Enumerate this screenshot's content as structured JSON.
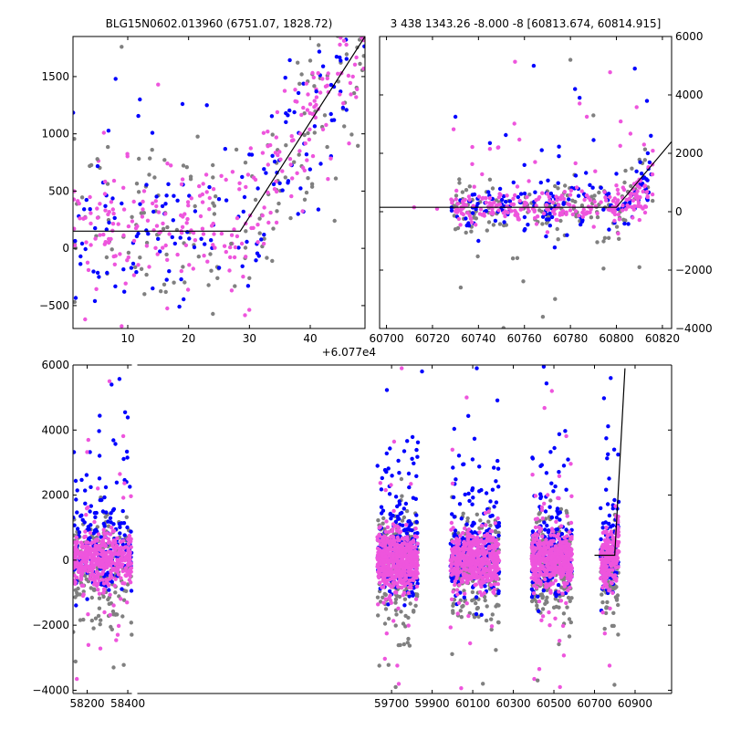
{
  "colors": {
    "gray": "#808080",
    "blue": "#0000ff",
    "pink": "#ee55dd",
    "model": "#000000"
  },
  "chart_data": [
    {
      "type": "scatter",
      "title": "BLG15N0602.013960 (6751.07, 1828.72)",
      "xlabel": "",
      "ylabel": "",
      "xlim": [
        1,
        49
      ],
      "ylim": [
        -700,
        1850
      ],
      "xticks": [
        10,
        20,
        30,
        40
      ],
      "yticks": [
        -500,
        0,
        500,
        1000,
        1500
      ],
      "y_axis_side": "left",
      "offset_text": "",
      "model_line": [
        [
          1,
          150
        ],
        [
          28.5,
          150
        ],
        [
          49,
          1850
        ]
      ],
      "series": [
        {
          "color": "gray",
          "points": [
            [
              5,
              780
            ],
            [
              14,
              860
            ],
            [
              24,
              620
            ],
            [
              9,
              1760
            ],
            [
              40,
              1640
            ],
            [
              30,
              -260
            ],
            [
              12,
              -80
            ],
            [
              36,
              900
            ],
            [
              44,
              240
            ],
            [
              27,
              40
            ]
          ]
        },
        {
          "color": "blue",
          "points": [
            [
              8,
              1480
            ],
            [
              12,
              1300
            ],
            [
              19,
              1260
            ],
            [
              23,
              1250
            ],
            [
              30,
              820
            ],
            [
              34,
              560
            ],
            [
              36,
              1180
            ],
            [
              38,
              300
            ],
            [
              41,
              1370
            ],
            [
              25,
              430
            ]
          ]
        },
        {
          "color": "pink",
          "points": [
            [
              3,
              -620
            ],
            [
              6,
              120
            ],
            [
              15,
              1430
            ],
            [
              22,
              280
            ],
            [
              31,
              600
            ],
            [
              33,
              1020
            ],
            [
              37,
              940
            ],
            [
              42,
              1480
            ],
            [
              45,
              1840
            ],
            [
              47,
              1500
            ],
            [
              9,
              -680
            ]
          ]
        }
      ]
    },
    {
      "type": "scatter",
      "title": "3 438 1343.26 -8.000 -8 [60813.674, 60814.915]",
      "xlabel": "",
      "ylabel": "",
      "xlim": [
        60697,
        60824
      ],
      "ylim": [
        -4000,
        6000
      ],
      "xticks": [
        60700,
        60720,
        60740,
        60760,
        60780,
        60800,
        60820
      ],
      "yticks": [
        -4000,
        -2000,
        0,
        2000,
        4000,
        6000
      ],
      "y_axis_side": "right",
      "offset_text": "+6.077e4",
      "model_line": [
        [
          60697,
          150
        ],
        [
          60800,
          150
        ],
        [
          60824,
          2400
        ]
      ],
      "series": [
        {
          "color": "gray",
          "points": [
            [
              60755,
              -1600
            ],
            [
              60768,
              -3600
            ],
            [
              60780,
              5200
            ],
            [
              60795,
              -900
            ],
            [
              60810,
              -1900
            ],
            [
              60730,
              -600
            ],
            [
              60790,
              3300
            ],
            [
              60745,
              1100
            ]
          ]
        },
        {
          "color": "blue",
          "points": [
            [
              60730,
              3250
            ],
            [
              60745,
              2350
            ],
            [
              60760,
              1600
            ],
            [
              60775,
              1900
            ],
            [
              60782,
              4200
            ],
            [
              60784,
              3900
            ],
            [
              60808,
              4900
            ],
            [
              60815,
              2600
            ],
            [
              60800,
              1300
            ],
            [
              60740,
              -1000
            ]
          ]
        },
        {
          "color": "pink",
          "points": [
            [
              60712,
              150
            ],
            [
              60745,
              300
            ],
            [
              60770,
              -700
            ],
            [
              60785,
              700
            ],
            [
              60800,
              900
            ],
            [
              60812,
              2300
            ],
            [
              60722,
              100
            ],
            [
              60760,
              200
            ]
          ]
        }
      ]
    },
    {
      "type": "scatter",
      "title": "",
      "xlabel": "",
      "ylabel": "",
      "xlim": [
        58130,
        61080
      ],
      "ylim": [
        -4100,
        6000
      ],
      "xticks": [
        58200,
        58400,
        59700,
        59900,
        60100,
        60300,
        60500,
        60700,
        60900
      ],
      "yticks": [
        -4000,
        -2000,
        0,
        2000,
        4000,
        6000
      ],
      "y_axis_side": "left",
      "offset_text": "",
      "model_line": [
        [
          60700,
          150
        ],
        [
          60800,
          150
        ],
        [
          60850,
          5900
        ]
      ],
      "seasons": [
        {
          "xmin": 58130,
          "xmax": 58420,
          "count": 420
        },
        {
          "xmin": 59630,
          "xmax": 59830,
          "count": 520
        },
        {
          "xmin": 59990,
          "xmax": 60230,
          "count": 480
        },
        {
          "xmin": 60390,
          "xmax": 60590,
          "count": 470
        },
        {
          "xmin": 60730,
          "xmax": 60820,
          "count": 200
        }
      ],
      "outliers": [
        {
          "color": "blue",
          "points": [
            [
              58320,
              5400
            ],
            [
              59850,
              5800
            ],
            [
              60120,
              5900
            ],
            [
              60450,
              5950
            ],
            [
              60780,
              5600
            ]
          ]
        },
        {
          "color": "pink",
          "points": [
            [
              58310,
              5500
            ],
            [
              59750,
              5900
            ],
            [
              60070,
              5000
            ],
            [
              60490,
              5200
            ],
            [
              60530,
              -3900
            ]
          ]
        },
        {
          "color": "gray",
          "points": [
            [
              58330,
              -3300
            ],
            [
              59720,
              -3900
            ],
            [
              60150,
              -3800
            ],
            [
              60420,
              -3700
            ]
          ]
        }
      ]
    }
  ]
}
